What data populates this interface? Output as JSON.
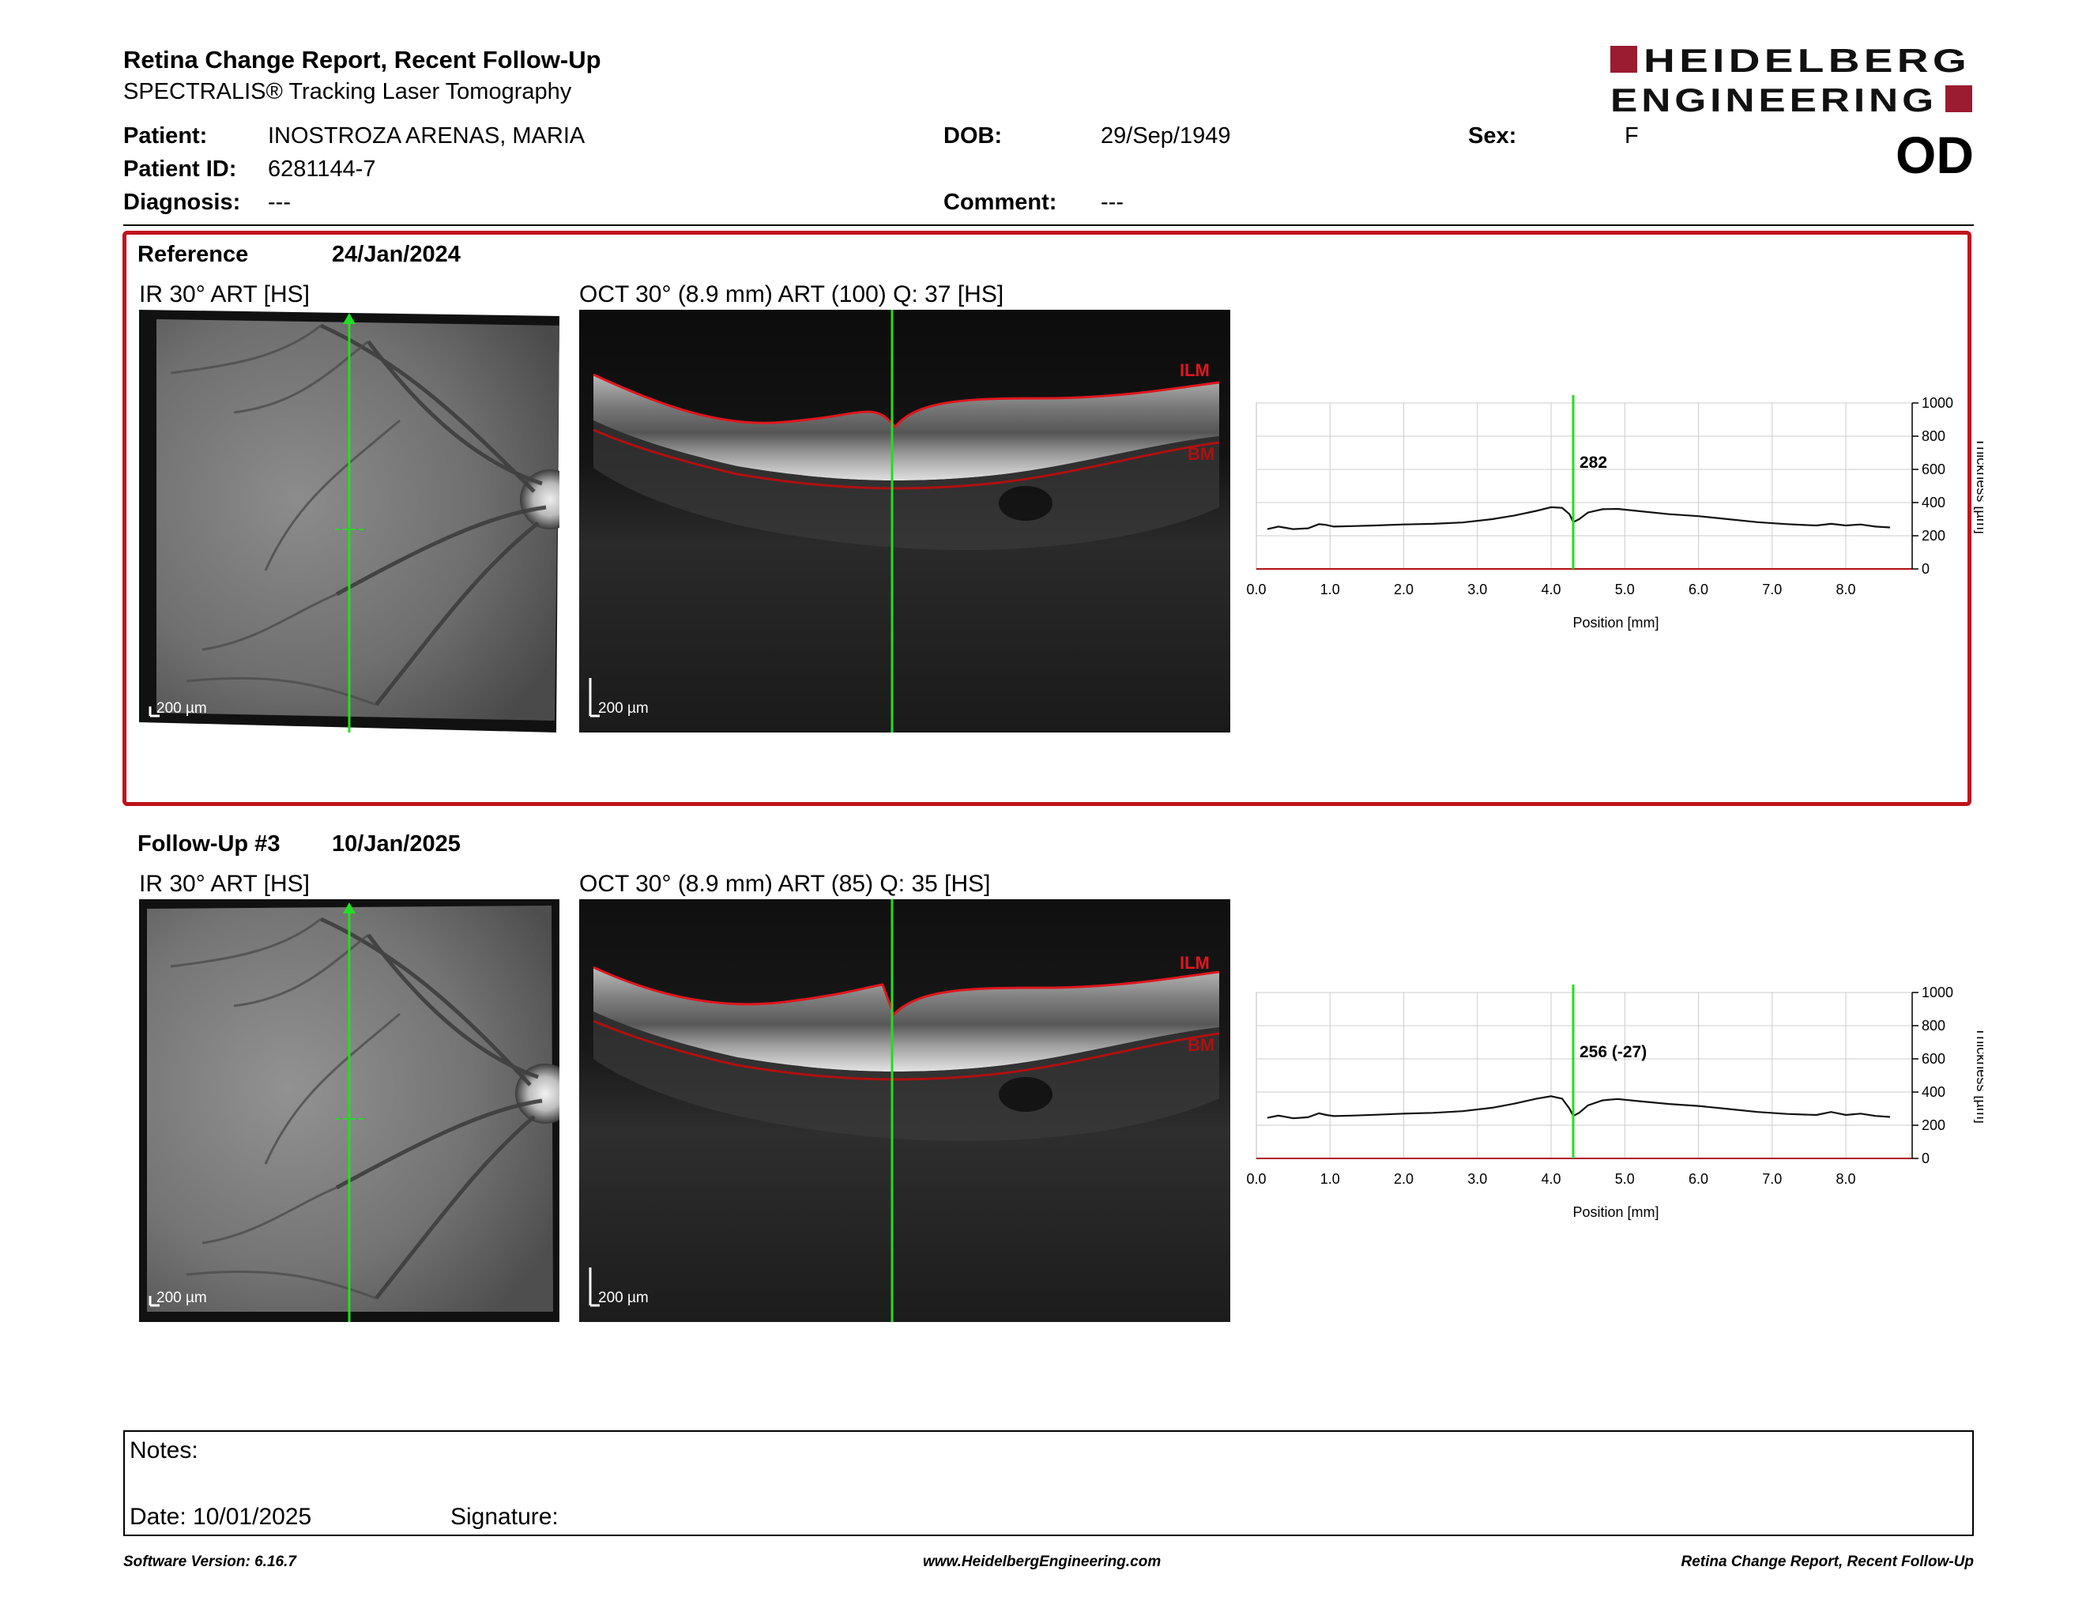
{
  "report": {
    "title": "Retina Change Report, Recent Follow-Up",
    "subtitle": "SPECTRALIS® Tracking Laser Tomography"
  },
  "logo": {
    "line1": "HEIDELBERG",
    "line2": "ENGINEERING",
    "brand_color": "#9b1b30"
  },
  "patient": {
    "patient_label": "Patient:",
    "patient_value": "INOSTROZA ARENAS, MARIA",
    "dob_label": "DOB:",
    "dob_value": "29/Sep/1949",
    "sex_label": "Sex:",
    "sex_value": "F",
    "id_label": "Patient ID:",
    "id_value": "6281144-7",
    "diagnosis_label": "Diagnosis:",
    "diagnosis_value": "---",
    "comment_label": "Comment:",
    "comment_value": "---",
    "eye": "OD"
  },
  "colors": {
    "reference_border": "#c1121c",
    "scan_line": "#22dd22",
    "ilm": "#e0161e",
    "bm": "#b01010"
  },
  "reference": {
    "label": "Reference",
    "date": "24/Jan/2024",
    "ir_label": "IR 30° ART [HS]",
    "oct_label": "OCT 30° (8.9 mm) ART (100) Q: 37 [HS]",
    "scale_ir": "200 µm",
    "scale_oct": "200 µm",
    "ilm_tag": "ILM",
    "bm_tag": "BM",
    "marker_value": "282"
  },
  "followup": {
    "label": "Follow-Up #3",
    "date": "10/Jan/2025",
    "ir_label": "IR 30° ART [HS]",
    "oct_label": "OCT 30° (8.9 mm) ART (85) Q: 35 [HS]",
    "scale_ir": "200 µm",
    "scale_oct": "200 µm",
    "ilm_tag": "ILM",
    "bm_tag": "BM",
    "marker_value": "256 (-27)"
  },
  "chart_data": [
    {
      "type": "line",
      "xlabel": "Position [mm]",
      "ylabel": "Thickness [µm]",
      "xlim": [
        0,
        8.9
      ],
      "ylim": [
        0,
        1000
      ],
      "x_ticks": [
        "0.0",
        "1.0",
        "2.0",
        "3.0",
        "4.0",
        "5.0",
        "6.0",
        "7.0",
        "8.0"
      ],
      "y_ticks": [
        "1000",
        "800",
        "600",
        "400",
        "200",
        "0"
      ],
      "grid": true,
      "marker_x": 4.3,
      "marker_label": "282",
      "series": [
        {
          "x": [
            0.15,
            0.3,
            0.5,
            0.7,
            0.85,
            0.95,
            1.05,
            1.3,
            1.6,
            2.0,
            2.4,
            2.8,
            3.2,
            3.5,
            3.8,
            4.0,
            4.15,
            4.25,
            4.3,
            4.38,
            4.5,
            4.7,
            4.9,
            5.2,
            5.6,
            6.0,
            6.4,
            6.8,
            7.2,
            7.6,
            7.8,
            8.0,
            8.2,
            8.4,
            8.6
          ],
          "y": [
            240,
            255,
            240,
            245,
            270,
            265,
            255,
            258,
            262,
            268,
            272,
            280,
            300,
            322,
            350,
            372,
            368,
            330,
            282,
            300,
            340,
            360,
            362,
            348,
            330,
            318,
            300,
            282,
            270,
            262,
            272,
            262,
            268,
            255,
            250
          ]
        }
      ]
    },
    {
      "type": "line",
      "xlabel": "Position [mm]",
      "ylabel": "Thickness [µm]",
      "xlim": [
        0,
        8.9
      ],
      "ylim": [
        0,
        1000
      ],
      "x_ticks": [
        "0.0",
        "1.0",
        "2.0",
        "3.0",
        "4.0",
        "5.0",
        "6.0",
        "7.0",
        "8.0"
      ],
      "y_ticks": [
        "1000",
        "800",
        "600",
        "400",
        "200",
        "0"
      ],
      "grid": true,
      "marker_x": 4.3,
      "marker_label": "256 (-27)",
      "series": [
        {
          "x": [
            0.15,
            0.3,
            0.5,
            0.7,
            0.85,
            0.95,
            1.05,
            1.3,
            1.6,
            2.0,
            2.4,
            2.8,
            3.2,
            3.5,
            3.8,
            4.0,
            4.15,
            4.25,
            4.3,
            4.38,
            4.5,
            4.7,
            4.9,
            5.2,
            5.6,
            6.0,
            6.4,
            6.8,
            7.2,
            7.6,
            7.8,
            8.0,
            8.2,
            8.4,
            8.6
          ],
          "y": [
            245,
            258,
            242,
            248,
            272,
            262,
            255,
            258,
            263,
            270,
            275,
            285,
            305,
            330,
            360,
            375,
            360,
            300,
            256,
            275,
            320,
            350,
            358,
            345,
            328,
            316,
            298,
            280,
            268,
            262,
            280,
            262,
            270,
            256,
            250
          ]
        }
      ]
    }
  ],
  "notes": {
    "notes_label": "Notes:",
    "date_label": "Date: 10/01/2025",
    "signature_label": "Signature:"
  },
  "footer": {
    "left": "Software Version: 6.16.7",
    "center": "www.HeidelbergEngineering.com",
    "right": "Retina Change Report, Recent Follow-Up"
  }
}
